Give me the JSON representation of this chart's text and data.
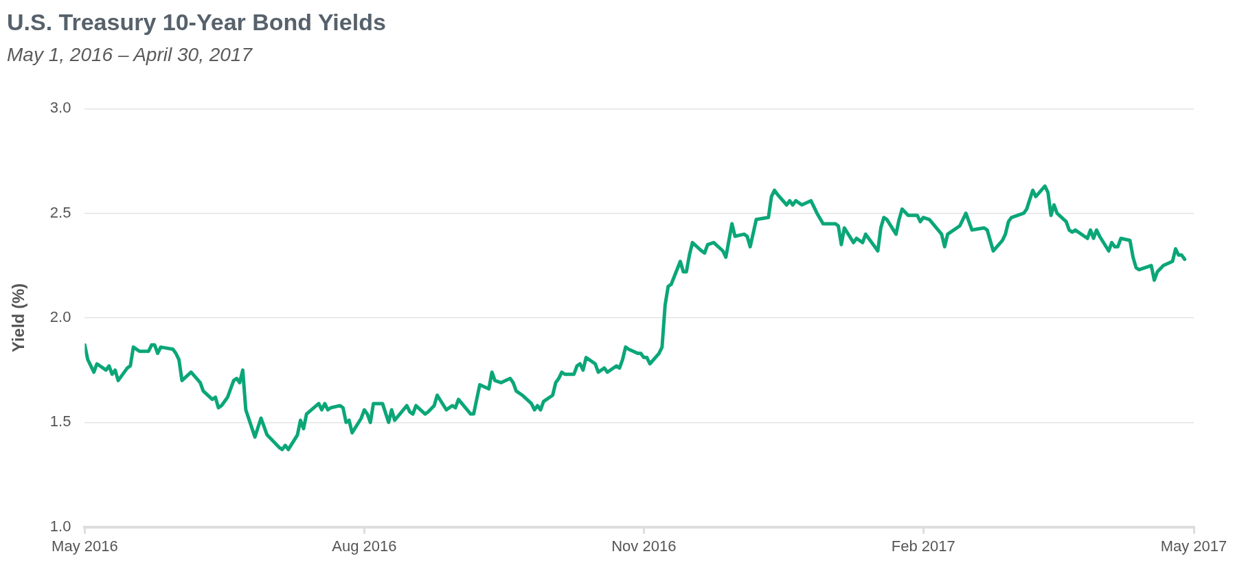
{
  "chart_data": {
    "type": "line",
    "title": "U.S. Treasury 10-Year Bond Yields",
    "subtitle": "May 1, 2016 – April 30, 2017",
    "ylabel": "Yield (%)",
    "x": [
      "2016-05-01",
      "2016-05-02",
      "2016-05-04",
      "2016-05-05",
      "2016-05-08",
      "2016-05-09",
      "2016-05-10",
      "2016-05-11",
      "2016-05-12",
      "2016-05-15",
      "2016-05-16",
      "2016-05-17",
      "2016-05-19",
      "2016-05-22",
      "2016-05-23",
      "2016-05-24",
      "2016-05-25",
      "2016-05-26",
      "2016-05-30",
      "2016-05-31",
      "2016-06-01",
      "2016-06-02",
      "2016-06-05",
      "2016-06-08",
      "2016-06-09",
      "2016-06-12",
      "2016-06-13",
      "2016-06-14",
      "2016-06-15",
      "2016-06-17",
      "2016-06-19",
      "2016-06-20",
      "2016-06-21",
      "2016-06-22",
      "2016-06-23",
      "2016-06-26",
      "2016-06-28",
      "2016-06-30",
      "2016-07-04",
      "2016-07-05",
      "2016-07-06",
      "2016-07-07",
      "2016-07-10",
      "2016-07-11",
      "2016-07-12",
      "2016-07-13",
      "2016-07-17",
      "2016-07-18",
      "2016-07-19",
      "2016-07-20",
      "2016-07-21",
      "2016-07-24",
      "2016-07-25",
      "2016-07-26",
      "2016-07-27",
      "2016-07-28",
      "2016-07-31",
      "2016-08-01",
      "2016-08-02",
      "2016-08-03",
      "2016-08-04",
      "2016-08-07",
      "2016-08-09",
      "2016-08-10",
      "2016-08-11",
      "2016-08-15",
      "2016-08-16",
      "2016-08-17",
      "2016-08-18",
      "2016-08-21",
      "2016-08-22",
      "2016-08-24",
      "2016-08-25",
      "2016-08-28",
      "2016-08-30",
      "2016-08-31",
      "2016-09-01",
      "2016-09-05",
      "2016-09-06",
      "2016-09-08",
      "2016-09-11",
      "2016-09-12",
      "2016-09-13",
      "2016-09-15",
      "2016-09-18",
      "2016-09-19",
      "2016-09-20",
      "2016-09-22",
      "2016-09-25",
      "2016-09-26",
      "2016-09-27",
      "2016-09-28",
      "2016-09-29",
      "2016-10-02",
      "2016-10-03",
      "2016-10-04",
      "2016-10-05",
      "2016-10-06",
      "2016-10-09",
      "2016-10-10",
      "2016-10-11",
      "2016-10-12",
      "2016-10-13",
      "2016-10-16",
      "2016-10-17",
      "2016-10-19",
      "2016-10-20",
      "2016-10-23",
      "2016-10-24",
      "2016-10-25",
      "2016-10-26",
      "2016-10-27",
      "2016-10-30",
      "2016-10-31",
      "2016-11-01",
      "2016-11-02",
      "2016-11-03",
      "2016-11-06",
      "2016-11-07",
      "2016-11-08",
      "2016-11-09",
      "2016-11-10",
      "2016-11-13",
      "2016-11-14",
      "2016-11-15",
      "2016-11-16",
      "2016-11-17",
      "2016-11-20",
      "2016-11-21",
      "2016-11-22",
      "2016-11-24",
      "2016-11-27",
      "2016-11-28",
      "2016-11-30",
      "2016-12-01",
      "2016-12-04",
      "2016-12-05",
      "2016-12-06",
      "2016-12-08",
      "2016-12-12",
      "2016-12-13",
      "2016-12-14",
      "2016-12-15",
      "2016-12-18",
      "2016-12-19",
      "2016-12-20",
      "2016-12-21",
      "2016-12-23",
      "2016-12-26",
      "2016-12-28",
      "2016-12-30",
      "2017-01-03",
      "2017-01-04",
      "2017-01-05",
      "2017-01-06",
      "2017-01-09",
      "2017-01-10",
      "2017-01-12",
      "2017-01-13",
      "2017-01-17",
      "2017-01-18",
      "2017-01-19",
      "2017-01-20",
      "2017-01-23",
      "2017-01-24",
      "2017-01-25",
      "2017-01-27",
      "2017-01-30",
      "2017-01-31",
      "2017-02-01",
      "2017-02-03",
      "2017-02-07",
      "2017-02-08",
      "2017-02-09",
      "2017-02-10",
      "2017-02-13",
      "2017-02-15",
      "2017-02-17",
      "2017-02-21",
      "2017-02-22",
      "2017-02-23",
      "2017-02-24",
      "2017-02-27",
      "2017-02-28",
      "2017-03-01",
      "2017-03-02",
      "2017-03-06",
      "2017-03-07",
      "2017-03-09",
      "2017-03-10",
      "2017-03-13",
      "2017-03-14",
      "2017-03-15",
      "2017-03-16",
      "2017-03-17",
      "2017-03-20",
      "2017-03-21",
      "2017-03-22",
      "2017-03-23",
      "2017-03-27",
      "2017-03-28",
      "2017-03-29",
      "2017-03-30",
      "2017-03-31",
      "2017-04-03",
      "2017-04-04",
      "2017-04-05",
      "2017-04-06",
      "2017-04-07",
      "2017-04-10",
      "2017-04-11",
      "2017-04-12",
      "2017-04-13",
      "2017-04-17",
      "2017-04-18",
      "2017-04-19",
      "2017-04-21",
      "2017-04-24",
      "2017-04-25",
      "2017-04-26",
      "2017-04-27",
      "2017-04-28"
    ],
    "series": [
      {
        "color": "#0ba678",
        "values": [
          1.87,
          1.8,
          1.74,
          1.78,
          1.75,
          1.77,
          1.73,
          1.75,
          1.7,
          1.76,
          1.77,
          1.86,
          1.84,
          1.84,
          1.87,
          1.87,
          1.83,
          1.86,
          1.85,
          1.83,
          1.8,
          1.7,
          1.74,
          1.69,
          1.65,
          1.61,
          1.62,
          1.57,
          1.58,
          1.62,
          1.7,
          1.71,
          1.69,
          1.75,
          1.56,
          1.43,
          1.52,
          1.44,
          1.38,
          1.37,
          1.39,
          1.37,
          1.44,
          1.51,
          1.47,
          1.54,
          1.59,
          1.56,
          1.59,
          1.56,
          1.57,
          1.58,
          1.57,
          1.5,
          1.51,
          1.45,
          1.52,
          1.56,
          1.54,
          1.5,
          1.59,
          1.59,
          1.5,
          1.56,
          1.51,
          1.58,
          1.55,
          1.54,
          1.58,
          1.54,
          1.55,
          1.58,
          1.63,
          1.56,
          1.58,
          1.57,
          1.61,
          1.54,
          1.54,
          1.68,
          1.66,
          1.74,
          1.7,
          1.69,
          1.71,
          1.69,
          1.65,
          1.63,
          1.59,
          1.56,
          1.58,
          1.56,
          1.6,
          1.63,
          1.69,
          1.71,
          1.74,
          1.73,
          1.73,
          1.77,
          1.78,
          1.75,
          1.81,
          1.78,
          1.74,
          1.76,
          1.74,
          1.77,
          1.76,
          1.8,
          1.86,
          1.85,
          1.83,
          1.83,
          1.81,
          1.81,
          1.78,
          1.83,
          1.86,
          2.06,
          2.15,
          2.16,
          2.27,
          2.22,
          2.22,
          2.3,
          2.36,
          2.32,
          2.31,
          2.35,
          2.36,
          2.32,
          2.29,
          2.45,
          2.39,
          2.4,
          2.39,
          2.34,
          2.47,
          2.48,
          2.58,
          2.61,
          2.59,
          2.54,
          2.56,
          2.54,
          2.56,
          2.54,
          2.56,
          2.5,
          2.45,
          2.45,
          2.44,
          2.35,
          2.43,
          2.36,
          2.38,
          2.36,
          2.4,
          2.32,
          2.43,
          2.48,
          2.47,
          2.4,
          2.47,
          2.52,
          2.49,
          2.49,
          2.46,
          2.48,
          2.47,
          2.4,
          2.34,
          2.4,
          2.41,
          2.44,
          2.5,
          2.42,
          2.43,
          2.42,
          2.37,
          2.32,
          2.37,
          2.4,
          2.46,
          2.48,
          2.5,
          2.52,
          2.61,
          2.58,
          2.63,
          2.6,
          2.49,
          2.54,
          2.5,
          2.46,
          2.42,
          2.41,
          2.42,
          2.38,
          2.42,
          2.38,
          2.42,
          2.39,
          2.32,
          2.36,
          2.34,
          2.34,
          2.38,
          2.37,
          2.29,
          2.24,
          2.23,
          2.25,
          2.18,
          2.22,
          2.25,
          2.27,
          2.33,
          2.3,
          2.3,
          2.28
        ]
      }
    ],
    "xlim": [
      "2016-05-01",
      "2017-05-01"
    ],
    "xticks": [
      {
        "value": "2016-05-01",
        "label": "May 2016"
      },
      {
        "value": "2016-08-01",
        "label": "Aug 2016"
      },
      {
        "value": "2016-11-01",
        "label": "Nov 2016"
      },
      {
        "value": "2017-02-01",
        "label": "Feb 2017"
      },
      {
        "value": "2017-05-01",
        "label": "May 2017"
      }
    ],
    "ylim": [
      1.0,
      3.0
    ],
    "yticks": [
      {
        "value": 1,
        "label": "1.0"
      },
      {
        "value": 1.5,
        "label": "1.5"
      },
      {
        "value": 2,
        "label": "2.0"
      },
      {
        "value": 2.5,
        "label": "2.5"
      },
      {
        "value": 3,
        "label": "3.0"
      }
    ],
    "grid": "y",
    "legend": false,
    "marker": "none",
    "line_style": "solid"
  }
}
